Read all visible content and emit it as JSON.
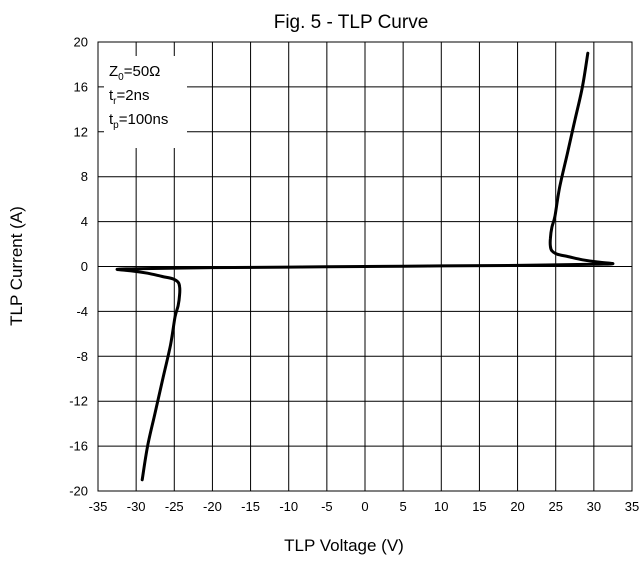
{
  "chart_data": {
    "type": "line",
    "title": "Fig. 5 - TLP Curve",
    "xlabel": "TLP Voltage (V)",
    "ylabel": "TLP Current (A)",
    "xlim": [
      -35,
      35
    ],
    "ylim": [
      -20,
      20
    ],
    "xticks": [
      -35,
      -30,
      -25,
      -20,
      -15,
      -10,
      -5,
      0,
      5,
      10,
      15,
      20,
      25,
      30,
      35
    ],
    "yticks": [
      -20,
      -16,
      -12,
      -8,
      -4,
      0,
      4,
      8,
      12,
      16,
      20
    ],
    "grid": true,
    "annotations": [
      {
        "main": "Z",
        "sub": "0",
        "rest": "=50Ω"
      },
      {
        "main": "t",
        "sub": "r",
        "rest": "=2ns"
      },
      {
        "main": "t",
        "sub": "p",
        "rest": "=100ns"
      }
    ],
    "series": [
      {
        "color": "#000000",
        "x": [
          29.2,
          28.5,
          27.5,
          26.5,
          25.5,
          24.9,
          24.5,
          24.3,
          24.3,
          24.5,
          25.2,
          26.5,
          28.5,
          30.5,
          32.5,
          30,
          20,
          10,
          0,
          -10,
          -20,
          -30,
          -32.5,
          -30.5,
          -28.5,
          -26.5,
          -25.2,
          -24.5,
          -24.3,
          -24.3,
          -24.5,
          -24.9,
          -25.5,
          -26.5,
          -27.5,
          -28.5,
          -29.2
        ],
        "y": [
          19,
          16,
          13,
          10,
          7,
          4.5,
          3.5,
          2.5,
          1.8,
          1.4,
          1.1,
          0.9,
          0.6,
          0.4,
          0.25,
          0.2,
          0.1,
          0.05,
          0,
          -0.05,
          -0.1,
          -0.2,
          -0.25,
          -0.4,
          -0.6,
          -0.9,
          -1.1,
          -1.4,
          -1.8,
          -2.5,
          -3.5,
          -4.5,
          -7,
          -10,
          -13,
          -16,
          -19
        ]
      }
    ]
  }
}
